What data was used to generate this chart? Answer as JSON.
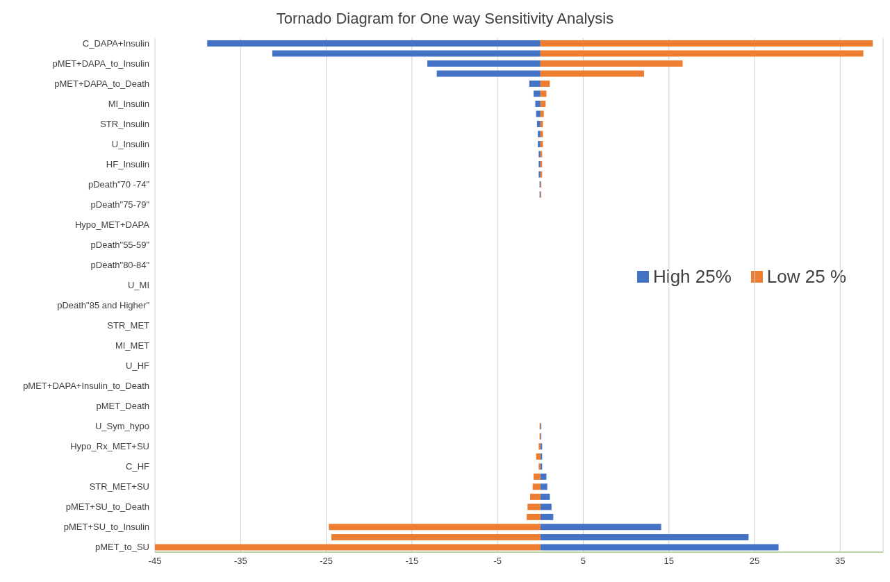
{
  "chart_data": {
    "type": "bar",
    "orientation": "horizontal",
    "stacked": true,
    "title": "Tornado Diagram for One way Sensitivity Analysis",
    "categories": [
      "C_DAPA+Insulin",
      null,
      "pMET+DAPA_to_Insulin",
      null,
      "pMET+DAPA_to_Death",
      null,
      "MI_Insulin",
      null,
      "STR_Insulin",
      null,
      "U_Insulin",
      null,
      "HF_Insulin",
      null,
      "pDeath\"70 -74\"",
      null,
      "pDeath\"75-79\"",
      null,
      "Hypo_MET+DAPA",
      null,
      "pDeath\"55-59\"",
      null,
      "pDeath\"80-84\"",
      null,
      "U_MI",
      null,
      "pDeath\"85 and Higher\"",
      null,
      "STR_MET",
      null,
      "MI_MET",
      null,
      "U_HF",
      null,
      "pMET+DAPA+Insulin_to_Death",
      null,
      "pMET_Death",
      null,
      "U_Sym_hypo",
      null,
      "Hypo_Rx_MET+SU",
      null,
      "C_HF",
      null,
      "STR_MET+SU",
      null,
      "pMET+SU_to_Death",
      null,
      "pMET+SU_to_Insulin",
      null,
      "pMET_to_SU"
    ],
    "series": [
      {
        "name": "High 25%",
        "color": "#4472c4",
        "values": [
          -38.9,
          -31.3,
          -13.2,
          -12.1,
          -1.3,
          -0.8,
          -0.6,
          -0.5,
          -0.4,
          -0.3,
          -0.3,
          -0.2,
          -0.2,
          -0.2,
          -0.1,
          -0.1,
          0,
          0,
          0,
          0,
          0,
          0,
          0,
          0,
          0,
          0,
          0,
          0,
          0,
          0,
          0,
          0,
          0,
          0,
          0,
          0,
          0,
          0,
          0.1,
          0.1,
          0.2,
          0.2,
          0.2,
          0.7,
          0.8,
          1.1,
          1.3,
          1.5,
          14.1,
          24.3,
          27.8
        ]
      },
      {
        "name": "Low 25 %",
        "color": "#ed7d31",
        "values": [
          38.8,
          37.7,
          16.6,
          12.1,
          1.1,
          0.7,
          0.6,
          0.4,
          0.3,
          0.3,
          0.3,
          0.2,
          0.2,
          0.2,
          0.1,
          0.1,
          0,
          0,
          0,
          0,
          0,
          0,
          0,
          0,
          0,
          0,
          0,
          0,
          0,
          0,
          0,
          0,
          0,
          0,
          0,
          0,
          0,
          0,
          -0.1,
          -0.1,
          -0.2,
          -0.5,
          -0.2,
          -0.8,
          -0.9,
          -1.2,
          -1.5,
          -1.6,
          -24.7,
          -24.4,
          -45
        ]
      }
    ],
    "xlim": [
      -45,
      40
    ],
    "xticks": [
      -45,
      -35,
      -25,
      -15,
      -5,
      5,
      15,
      25,
      35
    ],
    "grid": "x",
    "legend": "right"
  }
}
